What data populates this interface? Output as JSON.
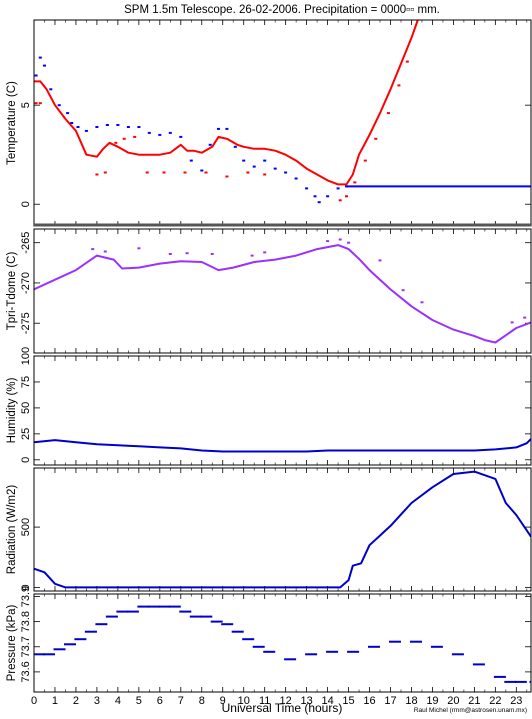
{
  "title": "SPM 1.5m Telescope. 26-02-2006. Precipitation = 0000▫▫ mm.",
  "xlabel": "Universal Time (hours)",
  "credit": "Raul Michel (rmm@astrosen.unam.mx)",
  "chart_data": [
    {
      "type": "scatter",
      "ylabel": "Temperature (C)",
      "xlim": [
        0,
        23.7
      ],
      "ylim": [
        -1.1,
        9.3
      ],
      "yticks": [
        0,
        5
      ],
      "series": [
        {
          "color": "#ff0000",
          "style": "line",
          "points": [
            [
              0,
              6.2
            ],
            [
              0.3,
              6.2
            ],
            [
              0.6,
              5.8
            ],
            [
              1,
              5
            ],
            [
              1.5,
              4.3
            ],
            [
              2,
              3.7
            ],
            [
              2.5,
              2.5
            ],
            [
              3,
              2.4
            ],
            [
              3.3,
              2.8
            ],
            [
              3.6,
              3.1
            ],
            [
              4,
              2.9
            ],
            [
              4.5,
              2.6
            ],
            [
              5,
              2.5
            ],
            [
              5.5,
              2.5
            ],
            [
              6,
              2.5
            ],
            [
              6.5,
              2.6
            ],
            [
              7,
              3
            ],
            [
              7.3,
              2.7
            ],
            [
              7.6,
              2.7
            ],
            [
              8,
              2.6
            ],
            [
              8.5,
              2.9
            ],
            [
              8.8,
              3.4
            ],
            [
              9.2,
              3.3
            ],
            [
              9.7,
              3
            ],
            [
              10,
              2.9
            ],
            [
              10.5,
              2.8
            ],
            [
              11,
              2.8
            ],
            [
              11.5,
              2.7
            ],
            [
              12,
              2.5
            ],
            [
              12.5,
              2.2
            ],
            [
              13,
              1.8
            ],
            [
              13.5,
              1.5
            ],
            [
              14,
              1.2
            ],
            [
              14.5,
              1
            ],
            [
              14.9,
              1
            ],
            [
              15.2,
              1.5
            ],
            [
              15.5,
              2.5
            ],
            [
              16,
              3.5
            ],
            [
              16.5,
              4.6
            ],
            [
              17,
              5.8
            ],
            [
              17.5,
              7.1
            ],
            [
              18,
              8.4
            ],
            [
              18.3,
              9.3
            ]
          ]
        },
        {
          "color": "#0000ff",
          "style": "points",
          "points": [
            [
              0.1,
              6.5
            ],
            [
              0.3,
              7.4
            ],
            [
              0.5,
              7
            ],
            [
              0.8,
              5.8
            ],
            [
              1.2,
              5
            ],
            [
              1.6,
              4.6
            ],
            [
              1.8,
              4.1
            ],
            [
              2.1,
              3.9
            ],
            [
              2.5,
              3.7
            ],
            [
              3,
              3.9
            ],
            [
              3.5,
              4
            ],
            [
              4,
              4
            ],
            [
              4.5,
              3.9
            ],
            [
              5,
              3.9
            ],
            [
              5.5,
              3.6
            ],
            [
              6,
              3.5
            ],
            [
              6.5,
              3.6
            ],
            [
              7,
              3.4
            ],
            [
              7.5,
              2.2
            ],
            [
              8,
              1.7
            ],
            [
              8.4,
              3
            ],
            [
              8.8,
              3.8
            ],
            [
              9.2,
              3.8
            ],
            [
              9.6,
              2.9
            ],
            [
              10,
              2.2
            ],
            [
              10.5,
              1.9
            ],
            [
              11,
              2.2
            ],
            [
              11.5,
              1.8
            ],
            [
              12,
              1.6
            ],
            [
              12.5,
              1.3
            ],
            [
              13,
              0.8
            ],
            [
              13.4,
              0.4
            ],
            [
              13.6,
              0.1
            ],
            [
              14,
              0.4
            ],
            [
              14.5,
              0.8
            ],
            [
              14.9,
              0.9
            ]
          ]
        },
        {
          "color": "#0000ff",
          "style": "line",
          "points": [
            [
              14.9,
              0.9
            ],
            [
              23.7,
              0.9
            ]
          ]
        },
        {
          "color": "#ff0000",
          "style": "points",
          "points": [
            [
              0.1,
              5.1
            ],
            [
              0.3,
              5.1
            ],
            [
              3,
              1.5
            ],
            [
              3.4,
              1.6
            ],
            [
              3.9,
              3.1
            ],
            [
              4.3,
              3.3
            ],
            [
              4.8,
              3.4
            ],
            [
              5.4,
              1.6
            ],
            [
              6.2,
              1.6
            ],
            [
              7.2,
              1.6
            ],
            [
              8.2,
              1.6
            ],
            [
              9.2,
              1.4
            ],
            [
              10.2,
              1.6
            ],
            [
              11,
              1.5
            ],
            [
              14.6,
              0.2
            ],
            [
              14.9,
              0.4
            ],
            [
              15.3,
              1.1
            ],
            [
              15.8,
              2.2
            ],
            [
              16.3,
              3.3
            ],
            [
              16.9,
              4.6
            ],
            [
              17.4,
              6
            ],
            [
              17.8,
              7.2
            ]
          ]
        }
      ]
    },
    {
      "type": "scatter",
      "ylabel": "Tpri-Tdome (C)",
      "xlim": [
        0,
        23.7
      ],
      "ylim": [
        -278.7,
        -263.3
      ],
      "yticks": [
        -275,
        -270,
        -265
      ],
      "series": [
        {
          "color": "#9b30ff",
          "style": "line",
          "points": [
            [
              0,
              -270.8
            ],
            [
              1,
              -269.6
            ],
            [
              2,
              -268.4
            ],
            [
              3,
              -266.6
            ],
            [
              3.8,
              -267.1
            ],
            [
              4.2,
              -268.2
            ],
            [
              5,
              -268.1
            ],
            [
              6,
              -267.6
            ],
            [
              7,
              -267.3
            ],
            [
              8,
              -267.4
            ],
            [
              8.8,
              -268.4
            ],
            [
              9.5,
              -268.1
            ],
            [
              10.5,
              -267.4
            ],
            [
              11.5,
              -267.1
            ],
            [
              12.5,
              -266.6
            ],
            [
              13.5,
              -265.8
            ],
            [
              14.5,
              -265.3
            ],
            [
              15,
              -265.8
            ],
            [
              15.5,
              -267
            ],
            [
              16,
              -268.4
            ],
            [
              17,
              -270.8
            ],
            [
              18,
              -272.9
            ],
            [
              19,
              -274.6
            ],
            [
              20,
              -275.8
            ],
            [
              21,
              -276.6
            ],
            [
              21.5,
              -277.1
            ],
            [
              22,
              -277.4
            ],
            [
              22.5,
              -276.5
            ],
            [
              23,
              -275.6
            ],
            [
              23.7,
              -274.9
            ]
          ]
        },
        {
          "color": "#9b30ff",
          "style": "points",
          "points": [
            [
              2.8,
              -265.8
            ],
            [
              3.4,
              -266.1
            ],
            [
              5,
              -265.7
            ],
            [
              6.5,
              -266.4
            ],
            [
              7.3,
              -266.3
            ],
            [
              8.5,
              -266.4
            ],
            [
              10.4,
              -266.6
            ],
            [
              11,
              -266.2
            ],
            [
              14,
              -264.8
            ],
            [
              14.6,
              -264.6
            ],
            [
              15,
              -265
            ],
            [
              16.5,
              -267.2
            ],
            [
              17.6,
              -270.9
            ],
            [
              18.5,
              -272.4
            ],
            [
              22.8,
              -274.9
            ],
            [
              23.4,
              -274.3
            ]
          ]
        }
      ]
    },
    {
      "type": "line",
      "ylabel": "Humidity (%)",
      "xlim": [
        0,
        23.7
      ],
      "ylim": [
        -5,
        100
      ],
      "yticks": [
        0,
        25,
        50,
        75,
        100
      ],
      "series": [
        {
          "color": "#0000cc",
          "points": [
            [
              0,
              17
            ],
            [
              1,
              19
            ],
            [
              2,
              17
            ],
            [
              3,
              15
            ],
            [
              4,
              14
            ],
            [
              5,
              13
            ],
            [
              6,
              12
            ],
            [
              7,
              11
            ],
            [
              8,
              9
            ],
            [
              9,
              8
            ],
            [
              10,
              8
            ],
            [
              11,
              8
            ],
            [
              12,
              8
            ],
            [
              13,
              8
            ],
            [
              14,
              9
            ],
            [
              15,
              9
            ],
            [
              16,
              9
            ],
            [
              17,
              9
            ],
            [
              18,
              9
            ],
            [
              19,
              9
            ],
            [
              20,
              9
            ],
            [
              21,
              9
            ],
            [
              22,
              10
            ],
            [
              23,
              12
            ],
            [
              23.5,
              16
            ],
            [
              23.7,
              20
            ]
          ]
        }
      ]
    },
    {
      "type": "line",
      "ylabel": "Radiation (W/m2)",
      "xlim": [
        0,
        23.7
      ],
      "ylim": [
        -30,
        990
      ],
      "yticks": [
        0,
        500
      ],
      "series": [
        {
          "color": "#0000cc",
          "points": [
            [
              0,
              155
            ],
            [
              0.5,
              125
            ],
            [
              1,
              30
            ],
            [
              1.5,
              0
            ],
            [
              3,
              0
            ],
            [
              5,
              0
            ],
            [
              7,
              0
            ],
            [
              9,
              0
            ],
            [
              11,
              0
            ],
            [
              13,
              0
            ],
            [
              14.6,
              0
            ],
            [
              15,
              60
            ],
            [
              15.2,
              180
            ],
            [
              15.6,
              200
            ],
            [
              16,
              350
            ],
            [
              17,
              510
            ],
            [
              18,
              700
            ],
            [
              19,
              830
            ],
            [
              20,
              940
            ],
            [
              21,
              960
            ],
            [
              22,
              900
            ],
            [
              22.5,
              700
            ],
            [
              23,
              600
            ],
            [
              23.7,
              420
            ]
          ]
        }
      ]
    },
    {
      "type": "scatter",
      "ylabel": "Pressure (kPa)",
      "xlim": [
        0,
        23.7
      ],
      "ylim": [
        73.52,
        73.91
      ],
      "yticks": [
        73.6,
        73.7,
        73.8,
        73.9
      ],
      "series": [
        {
          "color": "#0000cc",
          "points": [
            [
              0,
              73.67
            ],
            [
              0.5,
              73.67
            ],
            [
              1,
              73.69
            ],
            [
              1.5,
              73.71
            ],
            [
              2,
              73.73
            ],
            [
              2.5,
              73.76
            ],
            [
              3,
              73.79
            ],
            [
              3.5,
              73.82
            ],
            [
              4,
              73.84
            ],
            [
              4.5,
              73.84
            ],
            [
              5,
              73.86
            ],
            [
              5.5,
              73.86
            ],
            [
              6,
              73.86
            ],
            [
              6.5,
              73.86
            ],
            [
              7,
              73.84
            ],
            [
              7.5,
              73.82
            ],
            [
              8,
              73.82
            ],
            [
              8.5,
              73.8
            ],
            [
              9,
              73.79
            ],
            [
              9.5,
              73.76
            ],
            [
              10,
              73.73
            ],
            [
              10.5,
              73.7
            ],
            [
              11,
              73.68
            ],
            [
              12,
              73.65
            ],
            [
              13,
              73.67
            ],
            [
              14,
              73.68
            ],
            [
              15,
              73.68
            ],
            [
              16,
              73.7
            ],
            [
              17,
              73.72
            ],
            [
              18,
              73.72
            ],
            [
              19,
              73.7
            ],
            [
              20,
              73.67
            ],
            [
              21,
              73.63
            ],
            [
              22,
              73.58
            ],
            [
              22.5,
              73.56
            ],
            [
              23,
              73.56
            ],
            [
              23.7,
              73.56
            ]
          ]
        }
      ]
    }
  ]
}
